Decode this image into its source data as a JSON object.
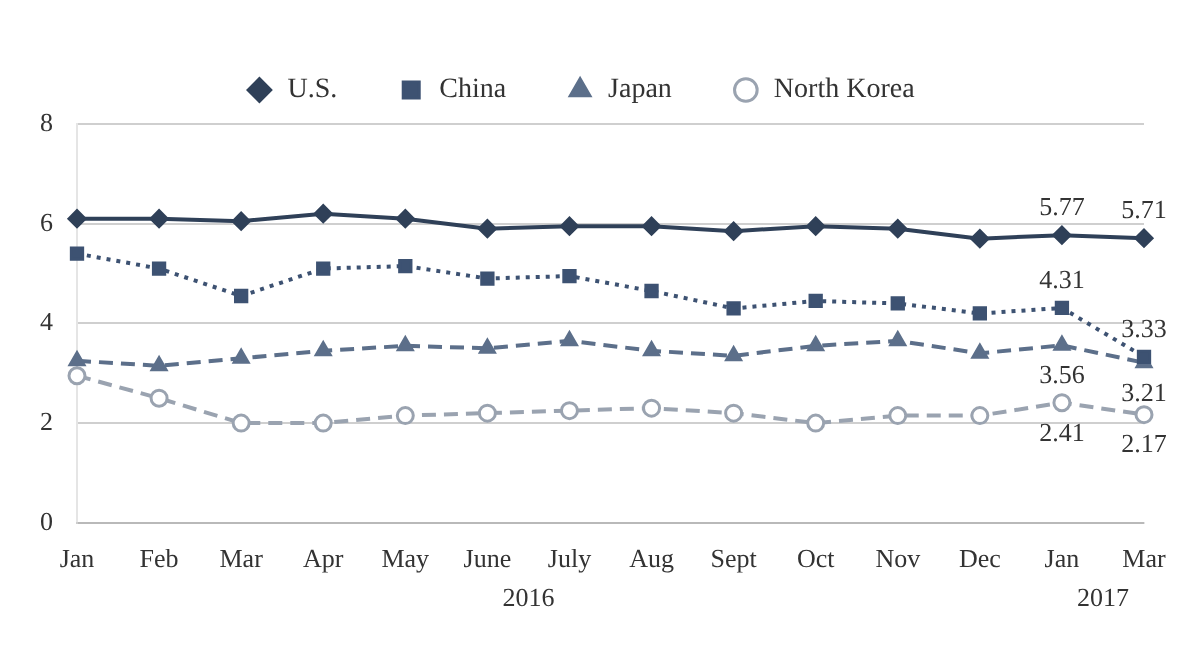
{
  "chart_data": {
    "type": "line",
    "categories": [
      "Jan",
      "Feb",
      "Mar",
      "Apr",
      "May",
      "June",
      "July",
      "Aug",
      "Sept",
      "Oct",
      "Nov",
      "Dec",
      "Jan",
      "Mar"
    ],
    "series": [
      {
        "name": "U.S.",
        "color": "#2f4058",
        "marker": "diamond",
        "line_style": "solid",
        "values": [
          6.1,
          6.1,
          6.05,
          6.2,
          6.1,
          5.9,
          5.95,
          5.95,
          5.85,
          5.95,
          5.9,
          5.7,
          5.77,
          5.71
        ],
        "value_labels": [
          null,
          null,
          null,
          null,
          null,
          null,
          null,
          null,
          null,
          null,
          null,
          null,
          "5.77",
          "5.71"
        ]
      },
      {
        "name": "China",
        "color": "#3d5272",
        "marker": "square",
        "line_style": "dotted",
        "values": [
          5.4,
          5.1,
          4.55,
          5.1,
          5.15,
          4.9,
          4.95,
          4.65,
          4.3,
          4.45,
          4.4,
          4.2,
          4.31,
          3.33
        ],
        "value_labels": [
          null,
          null,
          null,
          null,
          null,
          null,
          null,
          null,
          null,
          null,
          null,
          null,
          "4.31",
          "3.33"
        ]
      },
      {
        "name": "Japan",
        "color": "#5c6f8a",
        "marker": "triangle",
        "line_style": "dashed",
        "values": [
          3.25,
          3.15,
          3.3,
          3.45,
          3.55,
          3.5,
          3.65,
          3.45,
          3.35,
          3.55,
          3.65,
          3.4,
          3.56,
          3.21
        ],
        "value_labels": [
          null,
          null,
          null,
          null,
          null,
          null,
          null,
          null,
          null,
          null,
          null,
          null,
          "3.56",
          "3.21"
        ]
      },
      {
        "name": "North Korea",
        "color": "#9aa3b0",
        "marker": "circle",
        "line_style": "dashed",
        "values": [
          2.95,
          2.5,
          2.0,
          2.0,
          2.15,
          2.2,
          2.25,
          2.3,
          2.2,
          2.0,
          2.15,
          2.15,
          2.41,
          2.17
        ],
        "value_labels": [
          null,
          null,
          null,
          null,
          null,
          null,
          null,
          null,
          null,
          null,
          null,
          null,
          "2.41",
          "2.17"
        ]
      }
    ],
    "ylim": [
      0,
      8
    ],
    "yticks": [
      0,
      2,
      4,
      6,
      8
    ],
    "grid": "y",
    "legend": "top",
    "annotations": [
      "2016",
      "2017"
    ]
  }
}
